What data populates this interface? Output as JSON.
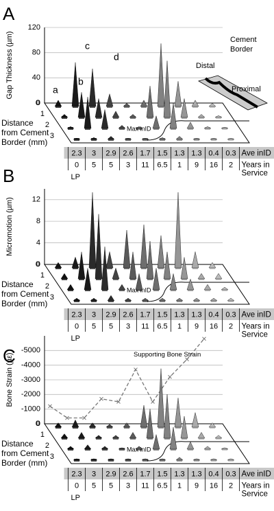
{
  "chart_data": [
    {
      "type": "cone3d",
      "panel": "A",
      "ylabel": "Gap Thickness (µm)",
      "ylim": [
        0,
        120
      ],
      "yticks": [
        0,
        40,
        80,
        120
      ],
      "depth_label": [
        "Distance",
        "from Cement",
        "Border (mm)"
      ],
      "depth_ticks": [
        0,
        1,
        2,
        3
      ],
      "column_colors": [
        "#111111",
        "#1a1a1a",
        "#2a2a2a",
        "#444444",
        "#5a5a5a",
        "#6e6e6e",
        "#828282",
        "#969696",
        "#aaaaaa",
        "#bcbcbc"
      ],
      "series": [
        {
          "values": [
            10,
            70,
            60,
            20,
            5,
            10,
            100,
            40,
            10,
            5
          ]
        },
        {
          "values": [
            5,
            40,
            30,
            10,
            5,
            50,
            90,
            30,
            5,
            3
          ]
        },
        {
          "values": [
            3,
            50,
            30,
            5,
            3,
            20,
            40,
            10,
            3,
            2
          ]
        },
        {
          "values": [
            2,
            3,
            5,
            2,
            2,
            3,
            5,
            2,
            2,
            2
          ]
        }
      ],
      "table_rows": [
        {
          "name": [
            "Ave inID"
          ],
          "values": [
            "2.3",
            "3",
            "2.9",
            "2.6",
            "1.7",
            "1.5",
            "1.3",
            "1.3",
            "0.4",
            "0.3"
          ]
        },
        {
          "name": [
            "Years in",
            "Service"
          ],
          "values": [
            "0",
            "5",
            "5",
            "3",
            "11",
            "6.5",
            "1",
            "9",
            "16",
            "2"
          ]
        }
      ],
      "first_column_label": "LP",
      "annotation": "Max inID",
      "cone_labels": [
        "a",
        "b",
        "c",
        "d"
      ],
      "inset_labels": {
        "distal": "Distal",
        "cement_border": [
          "Cement",
          "Border"
        ],
        "proximal": "Proximal"
      }
    },
    {
      "type": "cone3d",
      "panel": "B",
      "ylabel": "Micromotion (µm)",
      "ylim": [
        0,
        14
      ],
      "yticks": [
        0,
        4,
        8,
        12
      ],
      "depth_label": [
        "Distance",
        "from Cement",
        "Border (mm)"
      ],
      "depth_ticks": [
        0,
        1,
        2,
        3
      ],
      "column_colors": [
        "#111111",
        "#1a1a1a",
        "#2a2a2a",
        "#444444",
        "#5a5a5a",
        "#6e6e6e",
        "#828282",
        "#969696",
        "#aaaaaa",
        "#bcbcbc"
      ],
      "series": [
        {
          "values": [
            1,
            2,
            14,
            3,
            7,
            8,
            6,
            14,
            3,
            1
          ]
        },
        {
          "values": [
            1,
            5,
            12,
            2,
            5,
            7,
            5,
            4,
            1,
            1
          ]
        },
        {
          "values": [
            1,
            4,
            8,
            1,
            3,
            4,
            3,
            2,
            1,
            0.5
          ]
        },
        {
          "values": [
            0.5,
            0.5,
            1,
            0.5,
            0.5,
            0.5,
            0.5,
            0.5,
            0.5,
            0.5
          ]
        }
      ],
      "table_rows": [
        {
          "name": [
            "Ave inID"
          ],
          "values": [
            "2.3",
            "3",
            "2.9",
            "2.6",
            "1.7",
            "1.5",
            "1.3",
            "1.3",
            "0.4",
            "0.3"
          ]
        },
        {
          "name": [
            "Years in",
            "Service"
          ],
          "values": [
            "0",
            "5",
            "5",
            "3",
            "11",
            "6.5",
            "1",
            "9",
            "16",
            "2"
          ]
        }
      ],
      "first_column_label": "LP",
      "annotation": "Max inID"
    },
    {
      "type": "cone3d",
      "panel": "C",
      "ylabel": "Bone Strain (µε)",
      "ylim": [
        0,
        -6000
      ],
      "yticks": [
        0,
        -1000,
        -2000,
        -3000,
        -4000,
        -5000
      ],
      "depth_label": [
        "Distance",
        "from Cement",
        "Border (mm)"
      ],
      "depth_ticks": [
        0,
        1,
        2,
        3
      ],
      "column_colors": [
        "#111111",
        "#1a1a1a",
        "#2a2a2a",
        "#444444",
        "#5a5a5a",
        "#6e6e6e",
        "#828282",
        "#969696",
        "#aaaaaa",
        "#bcbcbc"
      ],
      "series": [
        {
          "values": [
            -300,
            -500,
            -300,
            -200,
            -300,
            -1500,
            -4000,
            -2000,
            -1000,
            -300
          ]
        },
        {
          "values": [
            -300,
            -400,
            -200,
            -200,
            -400,
            -2000,
            -3000,
            -1500,
            -400,
            -200
          ]
        },
        {
          "values": [
            -200,
            -300,
            -200,
            -100,
            -200,
            -1000,
            -1500,
            -500,
            -200,
            -100
          ]
        },
        {
          "values": [
            -100,
            -100,
            -100,
            -100,
            -100,
            -100,
            -200,
            -100,
            -100,
            -100
          ]
        }
      ],
      "strain_line": {
        "name": "Supporting Bone Strain",
        "color": "#777777",
        "values": [
          -1200,
          -400,
          -400,
          -1700,
          -1500,
          -3700,
          -1500,
          -3200,
          -4400,
          -5800
        ]
      },
      "table_rows": [
        {
          "name": [
            "Ave inID"
          ],
          "values": [
            "2.3",
            "3",
            "2.9",
            "2.6",
            "1.7",
            "1.5",
            "1.3",
            "1.3",
            "0.4",
            "0.3"
          ]
        },
        {
          "name": [
            "Years in",
            "Service"
          ],
          "values": [
            "0",
            "5",
            "5",
            "3",
            "11",
            "6.5",
            "1",
            "9",
            "16",
            "2"
          ]
        }
      ],
      "first_column_label": "LP",
      "annotation": "Max inID"
    }
  ]
}
